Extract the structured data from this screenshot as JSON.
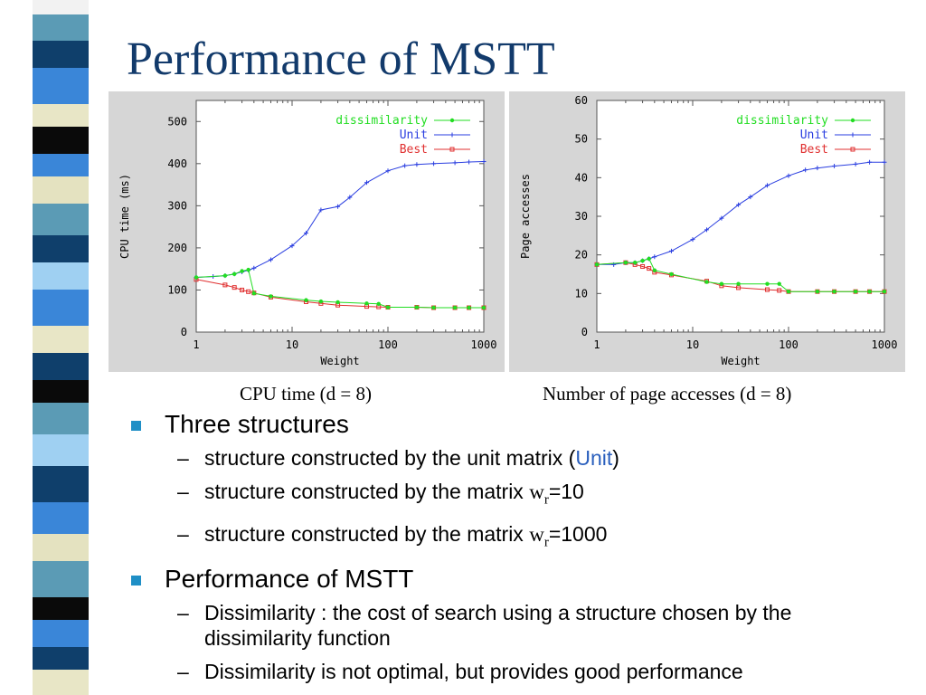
{
  "title": "Performance of MSTT",
  "colors": {
    "title": "#123a6b",
    "bullet": "#1f8fc6",
    "highlight": "#2a5fbd",
    "dissimilarity": "#22dd22",
    "unit": "#2a3ee0",
    "best": "#e03030",
    "plot_bg": "#ffffff",
    "panel_bg": "#d6d6d6"
  },
  "captions": {
    "cpu": "CPU time (d = 8)",
    "page": "Number of page accesses (d = 8)"
  },
  "chart_data": [
    {
      "id": "cpu",
      "type": "line",
      "xscale": "log",
      "xlim": [
        1,
        1000
      ],
      "ylim": [
        0,
        550
      ],
      "xticks": [
        1,
        10,
        100,
        1000
      ],
      "xtick_labels": [
        "1",
        "10",
        "100",
        "1000"
      ],
      "yticks": [
        0,
        100,
        200,
        300,
        400,
        500
      ],
      "ytick_labels": [
        "0",
        "100",
        "200",
        "300",
        "400",
        "500"
      ],
      "xlabel": "Weight",
      "ylabel": "CPU time (ms)",
      "grid": false,
      "legend_position": "top-right",
      "series": [
        {
          "name": "dissimilarity",
          "color": "#22dd22",
          "marker": "dot",
          "x": [
            1,
            2,
            2.5,
            3,
            3.5,
            4,
            6,
            14,
            20,
            30,
            60,
            80,
            100,
            200,
            300,
            500,
            700,
            1000
          ],
          "y": [
            130,
            134,
            138,
            145,
            148,
            92,
            85,
            76,
            73,
            71,
            68,
            67,
            59,
            59,
            58,
            58,
            58,
            58
          ]
        },
        {
          "name": "Unit",
          "color": "#2a3ee0",
          "marker": "plus",
          "x": [
            1,
            1.5,
            2,
            2.5,
            3,
            3.5,
            4,
            6,
            10,
            14,
            20,
            30,
            40,
            60,
            100,
            150,
            200,
            300,
            500,
            700,
            1000
          ],
          "y": [
            130,
            132,
            134,
            138,
            143,
            147,
            152,
            172,
            205,
            235,
            290,
            298,
            320,
            355,
            383,
            395,
            398,
            400,
            402,
            404,
            405
          ]
        },
        {
          "name": "Best",
          "color": "#e03030",
          "marker": "square",
          "x": [
            1,
            2,
            2.5,
            3,
            3.5,
            4,
            6,
            14,
            20,
            30,
            60,
            80,
            100,
            200,
            300,
            500,
            700,
            1000
          ],
          "y": [
            125,
            112,
            106,
            100,
            96,
            93,
            83,
            72,
            68,
            64,
            61,
            60,
            59,
            59,
            58,
            58,
            58,
            58
          ]
        }
      ]
    },
    {
      "id": "page",
      "type": "line",
      "xscale": "log",
      "xlim": [
        1,
        1000
      ],
      "ylim": [
        0,
        60
      ],
      "xticks": [
        1,
        10,
        100,
        1000
      ],
      "xtick_labels": [
        "1",
        "10",
        "100",
        "1000"
      ],
      "yticks": [
        0,
        10,
        20,
        30,
        40,
        50,
        60
      ],
      "ytick_labels": [
        "0",
        "10",
        "20",
        "30",
        "40",
        "50",
        "60"
      ],
      "xlabel": "Weight",
      "ylabel": "Page accesses",
      "grid": false,
      "legend_position": "top-right",
      "series": [
        {
          "name": "dissimilarity",
          "color": "#22dd22",
          "marker": "dot",
          "x": [
            1,
            2,
            2.5,
            3,
            3.5,
            4,
            6,
            14,
            20,
            30,
            60,
            80,
            100,
            200,
            300,
            500,
            700,
            1000
          ],
          "y": [
            17.5,
            18,
            18,
            18.5,
            19,
            16,
            15,
            13,
            12.5,
            12.5,
            12.5,
            12.5,
            10.5,
            10.5,
            10.5,
            10.5,
            10.5,
            10.5
          ]
        },
        {
          "name": "Unit",
          "color": "#2a3ee0",
          "marker": "plus",
          "x": [
            1,
            1.5,
            2,
            2.5,
            3,
            3.5,
            4,
            6,
            10,
            14,
            20,
            30,
            40,
            60,
            100,
            150,
            200,
            300,
            500,
            700,
            1000
          ],
          "y": [
            17.5,
            17.5,
            18,
            18,
            18.5,
            19,
            19.5,
            21,
            24,
            26.5,
            29.5,
            33,
            35,
            38,
            40.5,
            42,
            42.5,
            43,
            43.5,
            44,
            44
          ]
        },
        {
          "name": "Best",
          "color": "#e03030",
          "marker": "square",
          "x": [
            1,
            2,
            2.5,
            3,
            3.5,
            4,
            6,
            14,
            20,
            30,
            60,
            80,
            100,
            200,
            300,
            500,
            700,
            1000
          ],
          "y": [
            17.5,
            18,
            17.5,
            17,
            16.5,
            15.5,
            14.8,
            13.2,
            12,
            11.5,
            11,
            10.8,
            10.5,
            10.5,
            10.5,
            10.5,
            10.5,
            10.5
          ]
        }
      ]
    }
  ],
  "bullets": [
    {
      "text": "Three structures",
      "subs": [
        {
          "prefix": "structure constructed by the unit matrix (",
          "highlight": "Unit",
          "suffix": ")"
        },
        {
          "prefix": "structure constructed by the matrix ",
          "var": "w",
          "sub": "r",
          "value": "=10"
        },
        {
          "prefix": "structure constructed by the matrix ",
          "var": "w",
          "sub": "r",
          "value": "=1000"
        }
      ]
    },
    {
      "text": "Performance of MSTT",
      "subs": [
        {
          "text": "Dissimilarity : the cost of search using a structure chosen by the dissimilarity function"
        },
        {
          "text": "Dissimilarity is not optimal, but provides good performance"
        }
      ]
    }
  ]
}
